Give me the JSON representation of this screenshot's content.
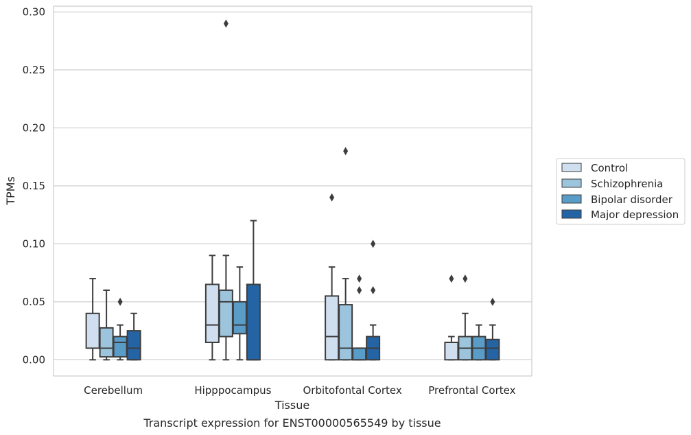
{
  "chart_data": {
    "type": "box",
    "caption": "Transcript expression for ENST00000565549 by tissue",
    "xlabel": "Tissue",
    "ylabel": "TPMs",
    "ylim": [
      -0.014,
      0.305
    ],
    "yticks": [
      0.0,
      0.05,
      0.1,
      0.15,
      0.2,
      0.25,
      0.3
    ],
    "ytick_labels": [
      "0.00",
      "0.05",
      "0.10",
      "0.15",
      "0.20",
      "0.25",
      "0.30"
    ],
    "categories": [
      "Cerebellum",
      "Hipppocampus",
      "Orbitofontal Cortex",
      "Prefrontal Cortex"
    ],
    "grid": "horizontal",
    "legend_position": "outside-right",
    "series": [
      {
        "name": "Control",
        "color": "#cfdfef",
        "boxes": [
          {
            "whislo": 0.0,
            "q1": 0.01,
            "med": 0.01,
            "q3": 0.04,
            "whishi": 0.07,
            "fliers": []
          },
          {
            "whislo": 0.0,
            "q1": 0.015,
            "med": 0.03,
            "q3": 0.065,
            "whishi": 0.09,
            "fliers": []
          },
          {
            "whislo": 0.0,
            "q1": 0.0,
            "med": 0.02,
            "q3": 0.055,
            "whishi": 0.08,
            "fliers": [
              0.14
            ]
          },
          {
            "whislo": 0.0,
            "q1": 0.0,
            "med": 0.015,
            "q3": 0.015,
            "whishi": 0.02,
            "fliers": [
              0.07
            ]
          }
        ]
      },
      {
        "name": "Schizophrenia",
        "color": "#9cc4dc",
        "boxes": [
          {
            "whislo": 0.0,
            "q1": 0.0025,
            "med": 0.01,
            "q3": 0.0275,
            "whishi": 0.06,
            "fliers": []
          },
          {
            "whislo": 0.0,
            "q1": 0.02,
            "med": 0.05,
            "q3": 0.06,
            "whishi": 0.09,
            "fliers": [
              0.29
            ]
          },
          {
            "whislo": 0.0,
            "q1": 0.0,
            "med": 0.01,
            "q3": 0.0475,
            "whishi": 0.07,
            "fliers": [
              0.18
            ]
          },
          {
            "whislo": 0.0,
            "q1": 0.0,
            "med": 0.01,
            "q3": 0.02,
            "whishi": 0.04,
            "fliers": [
              0.07
            ]
          }
        ]
      },
      {
        "name": "Bipolar disorder",
        "color": "#5a9cc8",
        "boxes": [
          {
            "whislo": 0.0,
            "q1": 0.0025,
            "med": 0.015,
            "q3": 0.02,
            "whishi": 0.03,
            "fliers": [
              0.05
            ]
          },
          {
            "whislo": 0.0,
            "q1": 0.0225,
            "med": 0.03,
            "q3": 0.05,
            "whishi": 0.08,
            "fliers": []
          },
          {
            "whislo": 0.0,
            "q1": 0.0,
            "med": 0.0,
            "q3": 0.01,
            "whishi": 0.01,
            "fliers": [
              0.06,
              0.07
            ]
          },
          {
            "whislo": 0.0,
            "q1": 0.0,
            "med": 0.01,
            "q3": 0.02,
            "whishi": 0.03,
            "fliers": []
          }
        ]
      },
      {
        "name": "Major depression",
        "color": "#2464a4",
        "boxes": [
          {
            "whislo": 0.0,
            "q1": 0.0,
            "med": 0.01,
            "q3": 0.025,
            "whishi": 0.04,
            "fliers": []
          },
          {
            "whislo": 0.0,
            "q1": 0.0,
            "med": 0.0,
            "q3": 0.065,
            "whishi": 0.12,
            "fliers": []
          },
          {
            "whislo": 0.0,
            "q1": 0.0,
            "med": 0.01,
            "q3": 0.02,
            "whishi": 0.03,
            "fliers": [
              0.06,
              0.1
            ]
          },
          {
            "whislo": 0.0,
            "q1": 0.0,
            "med": 0.01,
            "q3": 0.0175,
            "whishi": 0.03,
            "fliers": [
              0.05
            ]
          }
        ]
      }
    ]
  }
}
